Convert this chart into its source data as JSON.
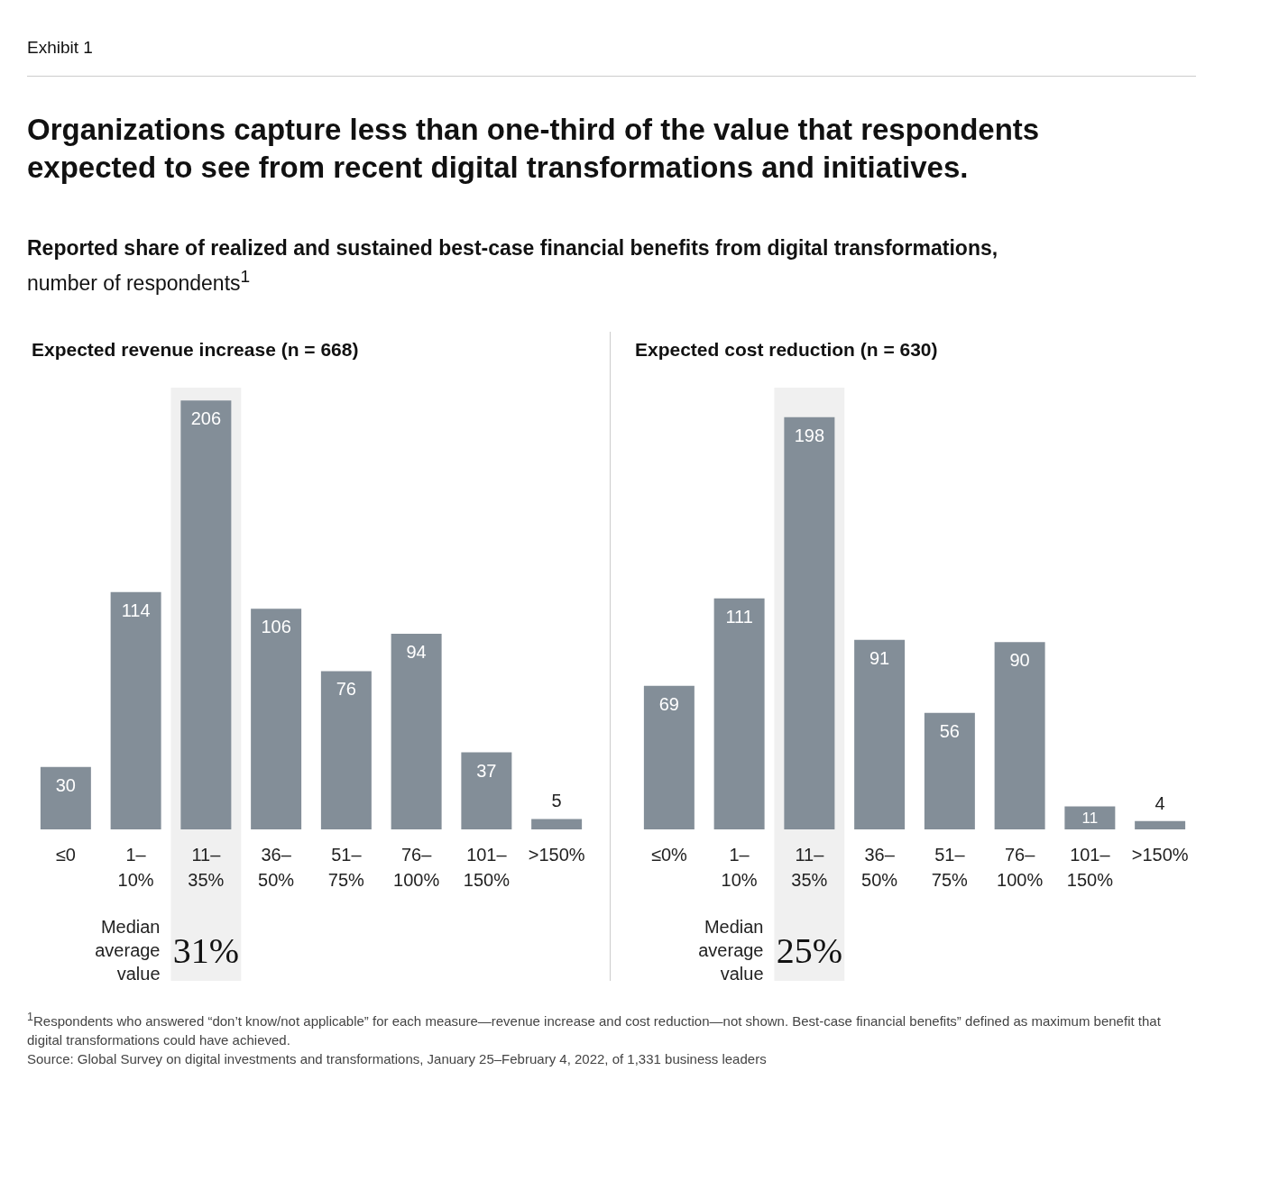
{
  "chart_data": [
    {
      "type": "other",
      "title": "Organizations capture less than one-third of the value that respondents expected to see from recent digital transformations and initiatives.",
      "subtitle": "Reported share of realized and sustained best-case financial benefits from digital transformations, number of respondents$^{1}$",
      "annotations": [
        "Exhibit 1",
        "$^{1}$Respondents who answered “don’t know/not applicable” for each measure—revenue increase and cost reduction—not shown. Best-case financial benefits” defined as maximum benefit that digital transformations could have achieved.",
        "Source: Global Survey on digital investments and transformations, January 25–February 4, 2022, of 1,331 business leaders"
      ]
    },
    {
      "type": "bar",
      "title": "Expected revenue increase (n = 668)",
      "categories": [
        "≤0",
        "1–10%",
        "11–35%",
        "36–50%",
        "51–75%",
        "76–100%",
        "101–150%",
        ">150%"
      ],
      "values": [
        30,
        114,
        206,
        106,
        76,
        94,
        37,
        5
      ],
      "color": "#838e98",
      "data_labels": true,
      "bands": [
        {
          "axis": "x",
          "from": "11–35%",
          "to": "11–35%",
          "label": "31%",
          "color": "#f0f0f0"
        }
      ],
      "annotations": [
        "Median average value"
      ]
    },
    {
      "type": "bar",
      "title": "Expected cost reduction (n = 630)",
      "categories": [
        "≤0%",
        "1–10%",
        "11–35%",
        "36–50%",
        "51–75%",
        "76–100%",
        "101–150%",
        ">150%"
      ],
      "values": [
        69,
        111,
        198,
        91,
        56,
        90,
        11,
        4
      ],
      "color": "#838e98",
      "data_labels": true,
      "bands": [
        {
          "axis": "x",
          "from": "11–35%",
          "to": "11–35%",
          "label": "25%",
          "color": "#f0f0f0"
        }
      ],
      "annotations": [
        "Median average value"
      ]
    }
  ]
}
